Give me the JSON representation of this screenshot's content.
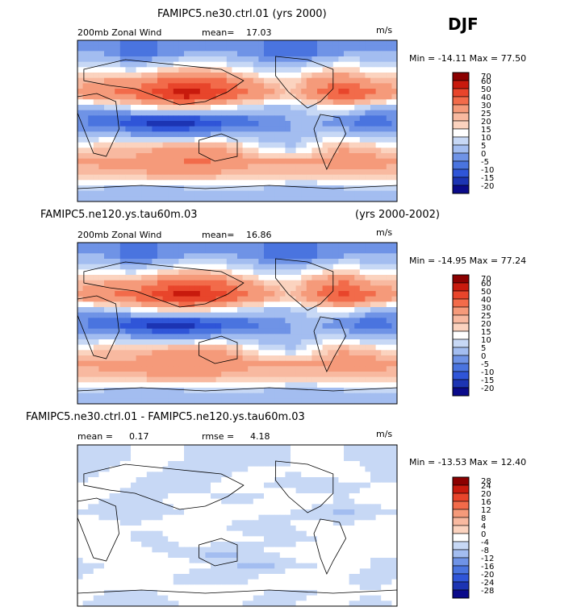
{
  "season": "DJF",
  "panels": [
    {
      "title_left": "FAMIPC5.ne30.ctrl.01 (yrs 2000)",
      "title_right": "",
      "subtitle_left": "200mb Zonal Wind",
      "stat1_label": "mean=",
      "stat1_value": "17.03",
      "stat2_label": "",
      "stat2_value": "",
      "units": "m/s",
      "minmax": "Min = -14.11 Max =  77.50",
      "colorbar_levels": [
        "70",
        "60",
        "50",
        "40",
        "30",
        "25",
        "20",
        "15",
        "10",
        "5",
        "0",
        "-5",
        "-10",
        "-15",
        "-20"
      ]
    },
    {
      "title_left": "FAMIPC5.ne120.ys.tau60m.03",
      "title_right": "(yrs 2000-2002)",
      "subtitle_left": "200mb Zonal Wind",
      "stat1_label": "mean=",
      "stat1_value": "16.86",
      "stat2_label": "",
      "stat2_value": "",
      "units": "m/s",
      "minmax": "Min = -14.95 Max =  77.24",
      "colorbar_levels": [
        "70",
        "60",
        "50",
        "40",
        "30",
        "25",
        "20",
        "15",
        "10",
        "5",
        "0",
        "-5",
        "-10",
        "-15",
        "-20"
      ]
    },
    {
      "title_left": "FAMIPC5.ne30.ctrl.01 - FAMIPC5.ne120.ys.tau60m.03",
      "title_right": "",
      "subtitle_left": "mean =",
      "stat1_label": "",
      "stat1_value": "0.17",
      "stat2_label": "rmse =",
      "stat2_value": "4.18",
      "units": "m/s",
      "minmax": "Min = -13.53 Max =  12.40",
      "colorbar_levels": [
        "28",
        "24",
        "20",
        "16",
        "12",
        "8",
        "4",
        "0",
        "-4",
        "-8",
        "-12",
        "-16",
        "-20",
        "-24",
        "-28"
      ]
    }
  ],
  "colors": {
    "dark_red": "#8b0000",
    "red": "#e8452b",
    "salmon": "#f59a7a",
    "light_orange": "#fbd3bf",
    "white": "#ffffff",
    "light_blue": "#c7d8f5",
    "blue": "#6f93e6",
    "royal": "#2f55d8",
    "navy": "#0a0a8a"
  },
  "chart_data": [
    {
      "type": "heatmap",
      "title": "FAMIPC5.ne30.ctrl.01 (yrs 2000)",
      "variable": "200mb Zonal Wind",
      "units": "m/s",
      "mean": 17.03,
      "min": -14.11,
      "max": 77.5,
      "x": [
        0,
        30,
        60,
        90,
        120,
        150,
        180,
        210,
        240,
        270,
        300,
        330,
        360
      ],
      "y": [
        -90,
        -75,
        -60,
        -45,
        -30,
        -15,
        0,
        15,
        30,
        45,
        60,
        75,
        90
      ],
      "z": [
        [
          5,
          5,
          5,
          5,
          5,
          5,
          5,
          5,
          5,
          5,
          5,
          5,
          5
        ],
        [
          10,
          10,
          8,
          8,
          10,
          10,
          10,
          10,
          8,
          8,
          10,
          10,
          10
        ],
        [
          25,
          28,
          28,
          30,
          30,
          30,
          25,
          25,
          25,
          25,
          28,
          28,
          25
        ],
        [
          30,
          32,
          32,
          35,
          40,
          40,
          35,
          30,
          30,
          30,
          35,
          35,
          30
        ],
        [
          20,
          25,
          25,
          30,
          35,
          35,
          25,
          15,
          10,
          20,
          30,
          25,
          20
        ],
        [
          5,
          10,
          5,
          0,
          0,
          5,
          5,
          5,
          5,
          10,
          10,
          5,
          5
        ],
        [
          0,
          -5,
          -10,
          -15,
          -15,
          -10,
          -5,
          0,
          5,
          5,
          0,
          -5,
          0
        ],
        [
          5,
          10,
          15,
          20,
          25,
          20,
          15,
          10,
          10,
          15,
          20,
          10,
          5
        ],
        [
          35,
          40,
          45,
          55,
          70,
          60,
          45,
          35,
          25,
          40,
          55,
          45,
          35
        ],
        [
          25,
          30,
          30,
          40,
          50,
          45,
          35,
          25,
          20,
          35,
          40,
          30,
          25
        ],
        [
          15,
          15,
          10,
          15,
          20,
          20,
          15,
          10,
          10,
          15,
          20,
          15,
          15
        ],
        [
          5,
          5,
          -5,
          0,
          5,
          5,
          5,
          0,
          -5,
          0,
          5,
          5,
          5
        ],
        [
          0,
          0,
          0,
          0,
          0,
          0,
          0,
          0,
          0,
          0,
          0,
          0,
          0
        ]
      ]
    },
    {
      "type": "heatmap",
      "title": "FAMIPC5.ne120.ys.tau60m.03 (yrs 2000-2002)",
      "variable": "200mb Zonal Wind",
      "units": "m/s",
      "mean": 16.86,
      "min": -14.95,
      "max": 77.24,
      "x": [
        0,
        30,
        60,
        90,
        120,
        150,
        180,
        210,
        240,
        270,
        300,
        330,
        360
      ],
      "y": [
        -90,
        -75,
        -60,
        -45,
        -30,
        -15,
        0,
        15,
        30,
        45,
        60,
        75,
        90
      ],
      "z": [
        [
          5,
          5,
          5,
          5,
          5,
          5,
          5,
          5,
          5,
          5,
          5,
          5,
          5
        ],
        [
          10,
          10,
          8,
          8,
          10,
          10,
          10,
          10,
          8,
          8,
          10,
          10,
          10
        ],
        [
          25,
          28,
          28,
          30,
          30,
          30,
          25,
          25,
          25,
          25,
          28,
          28,
          25
        ],
        [
          30,
          32,
          32,
          35,
          38,
          40,
          35,
          30,
          30,
          30,
          35,
          35,
          30
        ],
        [
          20,
          25,
          25,
          30,
          33,
          35,
          25,
          15,
          10,
          20,
          30,
          25,
          20
        ],
        [
          5,
          10,
          5,
          0,
          0,
          5,
          5,
          5,
          5,
          10,
          10,
          5,
          5
        ],
        [
          0,
          -5,
          -10,
          -15,
          -15,
          -10,
          -5,
          0,
          5,
          5,
          0,
          -5,
          0
        ],
        [
          5,
          10,
          15,
          20,
          25,
          20,
          15,
          10,
          10,
          15,
          20,
          10,
          5
        ],
        [
          35,
          40,
          45,
          55,
          68,
          60,
          45,
          35,
          25,
          40,
          55,
          45,
          35
        ],
        [
          25,
          30,
          30,
          40,
          50,
          45,
          35,
          25,
          20,
          35,
          42,
          30,
          25
        ],
        [
          15,
          15,
          10,
          15,
          20,
          20,
          15,
          10,
          10,
          15,
          20,
          15,
          15
        ],
        [
          5,
          5,
          -5,
          0,
          5,
          5,
          5,
          0,
          -5,
          0,
          5,
          5,
          5
        ],
        [
          0,
          0,
          0,
          0,
          0,
          0,
          0,
          0,
          0,
          0,
          0,
          0,
          0
        ]
      ]
    },
    {
      "type": "heatmap",
      "title": "FAMIPC5.ne30.ctrl.01 - FAMIPC5.ne120.ys.tau60m.03",
      "units": "m/s",
      "mean": 0.17,
      "rmse": 4.18,
      "min": -13.53,
      "max": 12.4,
      "x": [
        0,
        30,
        60,
        90,
        120,
        150,
        180,
        210,
        240,
        270,
        300,
        330,
        360
      ],
      "y": [
        -90,
        -75,
        -60,
        -45,
        -30,
        -15,
        0,
        15,
        30,
        45,
        60,
        75,
        90
      ],
      "z": [
        [
          0,
          -2,
          -4,
          -2,
          0,
          2,
          0,
          -2,
          0,
          2,
          0,
          -2,
          0
        ],
        [
          2,
          0,
          -2,
          0,
          2,
          4,
          2,
          0,
          -2,
          0,
          2,
          0,
          2
        ],
        [
          0,
          2,
          4,
          2,
          -2,
          -4,
          -2,
          2,
          4,
          2,
          0,
          -2,
          0
        ],
        [
          -2,
          0,
          2,
          4,
          2,
          0,
          -4,
          -6,
          -2,
          0,
          2,
          0,
          -2
        ],
        [
          2,
          4,
          2,
          0,
          -2,
          -6,
          -4,
          0,
          2,
          4,
          2,
          0,
          2
        ],
        [
          0,
          2,
          0,
          -2,
          2,
          4,
          2,
          0,
          -2,
          0,
          2,
          4,
          0
        ],
        [
          4,
          2,
          0,
          2,
          4,
          2,
          -2,
          -4,
          0,
          2,
          0,
          2,
          4
        ],
        [
          0,
          -2,
          -4,
          -2,
          0,
          2,
          4,
          2,
          0,
          -2,
          -6,
          -2,
          0
        ],
        [
          2,
          0,
          -2,
          0,
          2,
          0,
          -2,
          0,
          4,
          2,
          0,
          2,
          2
        ],
        [
          0,
          2,
          0,
          -4,
          -2,
          0,
          2,
          0,
          -2,
          -4,
          -2,
          0,
          0
        ],
        [
          -2,
          0,
          2,
          0,
          -4,
          -2,
          0,
          2,
          0,
          2,
          4,
          0,
          -2
        ],
        [
          -4,
          -2,
          0,
          2,
          0,
          -2,
          -4,
          -2,
          0,
          2,
          0,
          -2,
          -4
        ],
        [
          0,
          0,
          0,
          0,
          0,
          0,
          0,
          0,
          0,
          0,
          0,
          0,
          0
        ]
      ]
    }
  ]
}
